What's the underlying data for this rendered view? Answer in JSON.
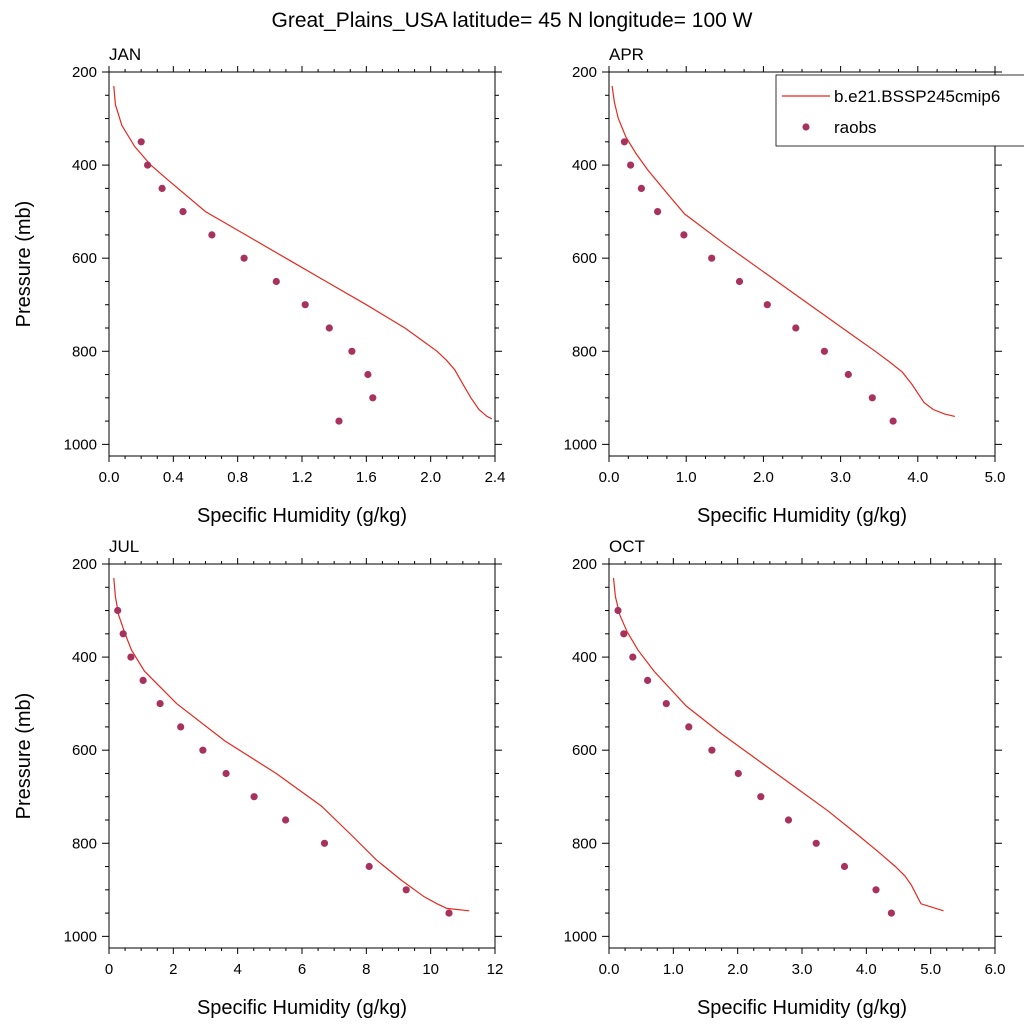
{
  "figure": {
    "title": "Great_Plains_USA  latitude= 45 N longitude= 100 W"
  },
  "colors": {
    "model_line": "#e8281e",
    "obs_marker": "#a8325e",
    "axis": "#000000",
    "background": "#ffffff"
  },
  "chart_data": [
    {
      "type": "line",
      "panel_label": "JAN",
      "xlabel": "Specific Humidity (g/kg)",
      "ylabel": "Pressure (mb)",
      "xlim": [
        0,
        2.4
      ],
      "ylim": [
        1025,
        200
      ],
      "y_inverted": true,
      "xticks": [
        0,
        0.4,
        0.8,
        1.2,
        1.6,
        2.0,
        2.4
      ],
      "xtick_labels": [
        "0.0",
        "0.4",
        "0.8",
        "1.2",
        "1.6",
        "2.0",
        "2.4"
      ],
      "yticks": [
        200,
        400,
        600,
        800,
        1000
      ],
      "ytick_labels": [
        "200",
        "400",
        "600",
        "800",
        "1000"
      ],
      "legend": null,
      "series": [
        {
          "name": "b.e21.BSSP245cmip6",
          "kind": "line",
          "x": [
            0.03,
            0.04,
            0.08,
            0.16,
            0.26,
            0.36,
            0.6,
            0.85,
            1.1,
            1.35,
            1.6,
            1.84,
            1.94,
            2.04,
            2.1,
            2.15,
            2.2,
            2.25,
            2.3,
            2.35,
            2.38
          ],
          "y": [
            230,
            270,
            315,
            360,
            400,
            430,
            500,
            550,
            600,
            650,
            700,
            750,
            775,
            800,
            820,
            840,
            870,
            900,
            925,
            940,
            945
          ]
        },
        {
          "name": "raobs",
          "kind": "markers",
          "x": [
            0.2,
            0.24,
            0.33,
            0.46,
            0.64,
            0.84,
            1.04,
            1.22,
            1.37,
            1.51,
            1.61,
            1.64,
            1.43
          ],
          "y": [
            350,
            400,
            450,
            500,
            550,
            600,
            650,
            700,
            750,
            800,
            850,
            900,
            950
          ]
        }
      ]
    },
    {
      "type": "line",
      "panel_label": "APR",
      "xlabel": "Specific Humidity (g/kg)",
      "ylabel": "",
      "xlim": [
        0,
        5.0
      ],
      "ylim": [
        1025,
        200
      ],
      "y_inverted": true,
      "xticks": [
        0,
        1,
        2,
        3,
        4,
        5
      ],
      "xtick_labels": [
        "0.0",
        "1.0",
        "2.0",
        "3.0",
        "4.0",
        "5.0"
      ],
      "yticks": [
        200,
        400,
        600,
        800,
        1000
      ],
      "ytick_labels": [
        "200",
        "400",
        "600",
        "800",
        "1000"
      ],
      "legend": {
        "placement": "top-right",
        "entries": [
          {
            "label": "b.e21.BSSP245cmip6",
            "kind": "line"
          },
          {
            "label": "raobs",
            "kind": "marker"
          }
        ]
      },
      "series": [
        {
          "name": "b.e21.BSSP245cmip6",
          "kind": "line",
          "x": [
            0.04,
            0.07,
            0.12,
            0.22,
            0.35,
            0.5,
            0.8,
            0.98,
            1.5,
            2.05,
            2.6,
            3.15,
            3.45,
            3.65,
            3.8,
            3.92,
            4.0,
            4.08,
            4.2,
            4.35,
            4.48
          ],
          "y": [
            230,
            265,
            300,
            340,
            375,
            410,
            470,
            505,
            570,
            635,
            700,
            765,
            800,
            825,
            845,
            870,
            890,
            910,
            925,
            935,
            940
          ]
        },
        {
          "name": "raobs",
          "kind": "markers",
          "x": [
            0.2,
            0.28,
            0.42,
            0.63,
            0.97,
            1.33,
            1.69,
            2.05,
            2.42,
            2.79,
            3.1,
            3.41,
            3.68
          ],
          "y": [
            350,
            400,
            450,
            500,
            550,
            600,
            650,
            700,
            750,
            800,
            850,
            900,
            950
          ]
        }
      ]
    },
    {
      "type": "line",
      "panel_label": "JUL",
      "xlabel": "Specific Humidity (g/kg)",
      "ylabel": "Pressure (mb)",
      "xlim": [
        0,
        12
      ],
      "ylim": [
        1025,
        200
      ],
      "y_inverted": true,
      "xticks": [
        0,
        2,
        4,
        6,
        8,
        10,
        12
      ],
      "xtick_labels": [
        "0",
        "2",
        "4",
        "6",
        "8",
        "10",
        "12"
      ],
      "yticks": [
        200,
        400,
        600,
        800,
        1000
      ],
      "ytick_labels": [
        "200",
        "400",
        "600",
        "800",
        "1000"
      ],
      "legend": null,
      "series": [
        {
          "name": "b.e21.BSSP245cmip6",
          "kind": "line",
          "x": [
            0.15,
            0.2,
            0.3,
            0.5,
            0.7,
            1.1,
            2.1,
            3.6,
            5.2,
            6.6,
            7.5,
            8.3,
            9.1,
            9.8,
            10.2,
            10.5,
            11.2
          ],
          "y": [
            230,
            270,
            310,
            350,
            385,
            430,
            500,
            580,
            650,
            720,
            780,
            835,
            880,
            915,
            930,
            940,
            945
          ]
        },
        {
          "name": "raobs",
          "kind": "markers",
          "x": [
            0.27,
            0.44,
            0.68,
            1.06,
            1.59,
            2.23,
            2.92,
            3.64,
            4.51,
            5.49,
            6.7,
            8.09,
            9.24,
            10.57
          ],
          "y": [
            300,
            350,
            400,
            450,
            500,
            550,
            600,
            650,
            700,
            750,
            800,
            850,
            900,
            950
          ]
        }
      ]
    },
    {
      "type": "line",
      "panel_label": "OCT",
      "xlabel": "Specific Humidity (g/kg)",
      "ylabel": "",
      "xlim": [
        0,
        6.0
      ],
      "ylim": [
        1025,
        200
      ],
      "y_inverted": true,
      "xticks": [
        0,
        1,
        2,
        3,
        4,
        5,
        6
      ],
      "xtick_labels": [
        "0.0",
        "1.0",
        "2.0",
        "3.0",
        "4.0",
        "5.0",
        "6.0"
      ],
      "yticks": [
        200,
        400,
        600,
        800,
        1000
      ],
      "ytick_labels": [
        "200",
        "400",
        "600",
        "800",
        "1000"
      ],
      "legend": null,
      "series": [
        {
          "name": "b.e21.BSSP245cmip6",
          "kind": "line",
          "x": [
            0.07,
            0.1,
            0.17,
            0.28,
            0.45,
            0.7,
            1.2,
            1.75,
            2.3,
            2.85,
            3.4,
            3.85,
            4.2,
            4.45,
            4.6,
            4.7,
            4.85,
            5.2
          ],
          "y": [
            230,
            270,
            310,
            345,
            385,
            430,
            505,
            565,
            620,
            675,
            730,
            780,
            820,
            850,
            870,
            890,
            930,
            945
          ]
        },
        {
          "name": "raobs",
          "kind": "markers",
          "x": [
            0.14,
            0.23,
            0.37,
            0.6,
            0.89,
            1.24,
            1.6,
            2.01,
            2.36,
            2.79,
            3.22,
            3.66,
            4.15,
            4.39
          ],
          "y": [
            300,
            350,
            400,
            450,
            500,
            550,
            600,
            650,
            700,
            750,
            800,
            850,
            900,
            950
          ]
        }
      ]
    }
  ]
}
